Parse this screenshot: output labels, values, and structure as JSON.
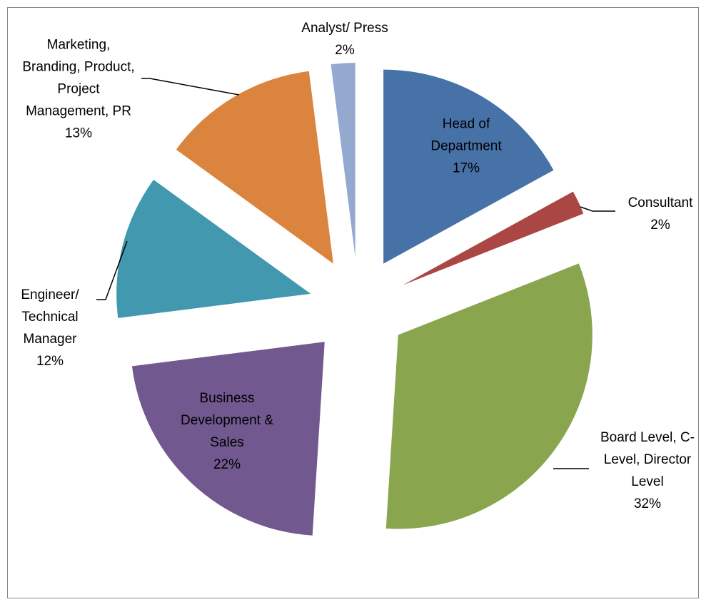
{
  "chart_data": {
    "type": "pie",
    "categories": [
      "Head of Department",
      "Consultant",
      "Board Level, C-Level, Director Level",
      "Business Development & Sales",
      "Engineer/ Technical Manager",
      "Marketing, Branding, Product, Project Management, PR",
      "Analyst/ Press"
    ],
    "values": [
      17,
      2,
      32,
      22,
      12,
      13,
      2
    ],
    "value_labels": [
      "17%",
      "2%",
      "32%",
      "22%",
      "12%",
      "13%",
      "2%"
    ],
    "colors": [
      "#4672a8",
      "#aa4744",
      "#89a54e",
      "#71588f",
      "#4198af",
      "#db843d",
      "#93a9cf"
    ]
  }
}
